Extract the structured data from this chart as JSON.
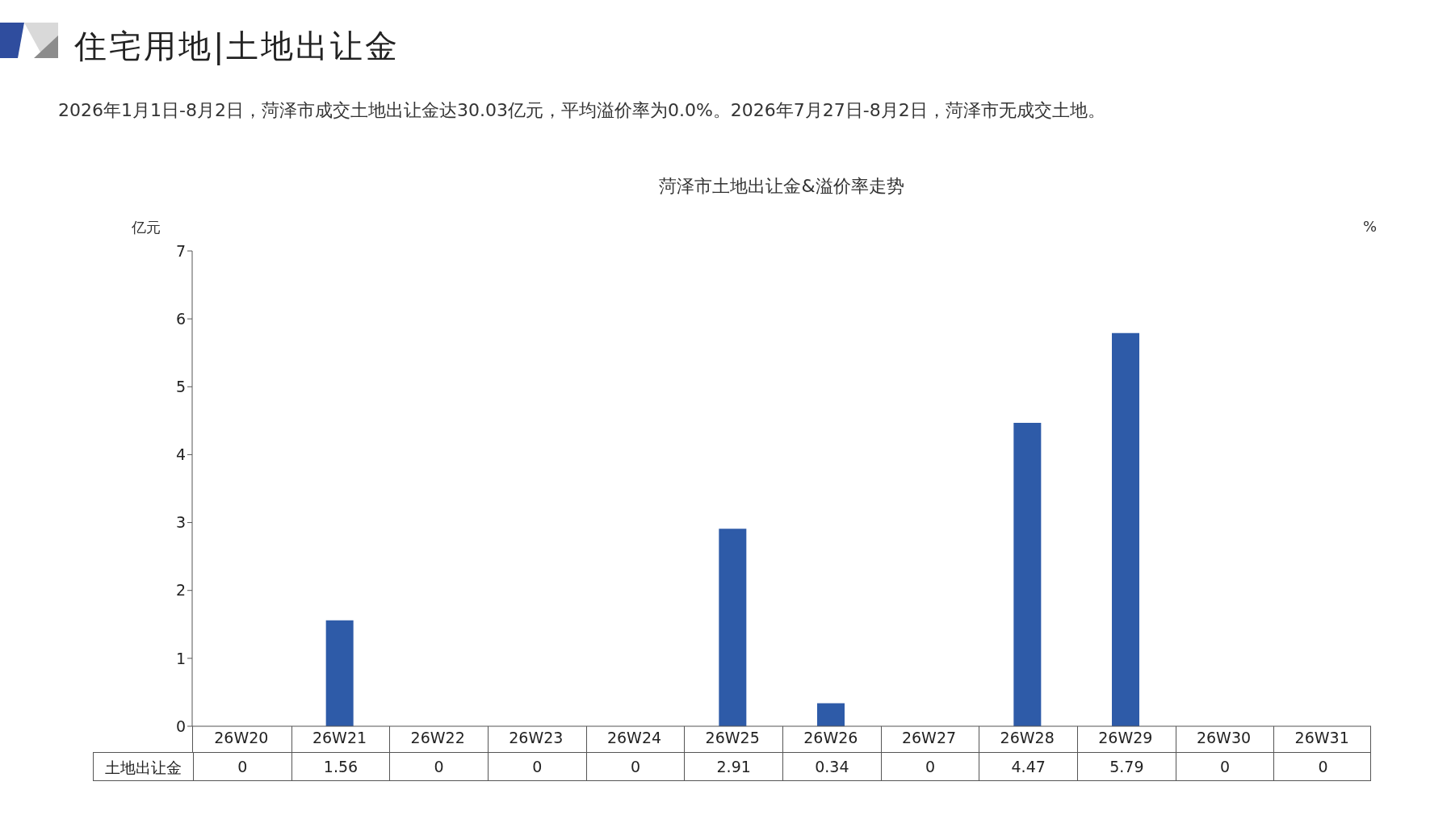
{
  "chart_data": {
    "type": "bar",
    "title": "住宅用地|土地出让金",
    "subtitle": "2026年1月1日-8月2日，菏泽市成交土地出让金达30.03亿元，平均溢价率为0.0%。2026年7月27日-8月2日，菏泽市无成交土地。",
    "annotations": [
      "菏泽市土地出让金&溢价率走势"
    ],
    "ylabel": "亿元",
    "y2label": "%",
    "categories": [
      "26W20",
      "26W21",
      "26W22",
      "26W23",
      "26W24",
      "26W25",
      "26W26",
      "26W27",
      "26W28",
      "26W29",
      "26W30",
      "26W31"
    ],
    "series": [
      {
        "name": "土地出让金",
        "color": "#2e5ba8",
        "values": [
          0,
          1.56,
          0,
          0,
          0,
          2.91,
          0.34,
          0,
          4.47,
          5.79,
          0,
          0
        ]
      }
    ],
    "ylim": [
      0,
      7
    ],
    "yticks": [
      0,
      1,
      2,
      3,
      4,
      5,
      6,
      7
    ],
    "data_labels": true
  }
}
